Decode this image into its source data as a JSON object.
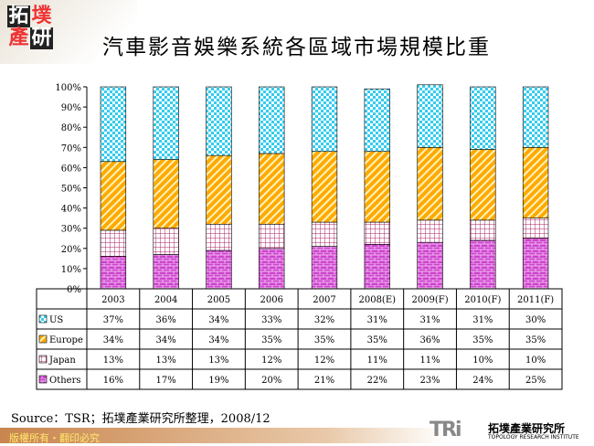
{
  "header": {
    "logo_text": "拓墣產研",
    "title": "汽車影音娛樂系統各區域市場規模比重"
  },
  "chart_data": {
    "type": "bar",
    "stacked": "percent",
    "categories": [
      "2003",
      "2004",
      "2005",
      "2006",
      "2007",
      "2008(E)",
      "2009(F)",
      "2010(F)",
      "2011(F)"
    ],
    "series": [
      {
        "name": "Others",
        "values": [
          16,
          17,
          19,
          20,
          21,
          22,
          23,
          24,
          25
        ],
        "color": "#cc44cc"
      },
      {
        "name": "Japan",
        "values": [
          13,
          13,
          13,
          12,
          12,
          11,
          11,
          10,
          10
        ],
        "color": "#aa2266"
      },
      {
        "name": "Europe",
        "values": [
          34,
          34,
          34,
          35,
          35,
          35,
          36,
          35,
          35
        ],
        "color": "#ffaa00"
      },
      {
        "name": "US",
        "values": [
          37,
          36,
          34,
          33,
          32,
          31,
          31,
          31,
          30
        ],
        "color": "#33ccee"
      }
    ],
    "yticks": [
      "0%",
      "10%",
      "20%",
      "30%",
      "40%",
      "50%",
      "60%",
      "70%",
      "80%",
      "90%",
      "100%"
    ],
    "ylim": [
      0,
      100
    ],
    "grid": false,
    "legend": "data-table"
  },
  "source": "Source：TSR；拓墣產業研究所整理，2008/12",
  "footer": {
    "copyright": "版權所有・翻印必究",
    "brand": "TRi",
    "brand_zh": "拓墣產業研究所",
    "brand_en": "TOPOLOGY RESEARCH INSTITUTE"
  }
}
